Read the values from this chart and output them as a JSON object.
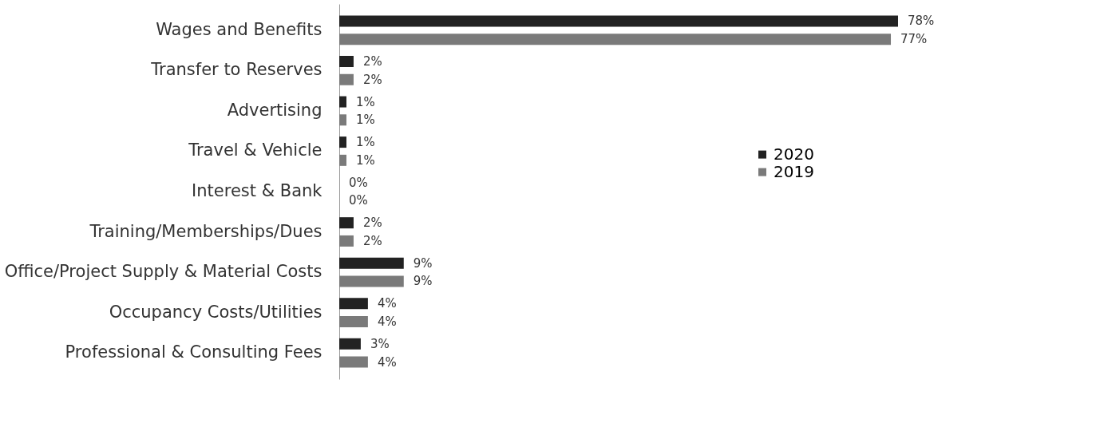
{
  "chart_data": {
    "type": "bar",
    "orientation": "horizontal",
    "categories": [
      "Wages and Benefits",
      "Transfer to Reserves",
      "Advertising",
      "Travel & Vehicle",
      "Interest & Bank",
      "Training/Memberships/Dues",
      "Office/Project Supply & Material Costs",
      "Occupancy Costs/Utilities",
      "Professional & Consulting Fees"
    ],
    "series": [
      {
        "name": "2020",
        "color": "#222222",
        "values": [
          78,
          2,
          1,
          1,
          0,
          2,
          9,
          4,
          3
        ],
        "value_labels": [
          "78%",
          "2%",
          "1%",
          "1%",
          "0%",
          "2%",
          "9%",
          "4%",
          "3%"
        ]
      },
      {
        "name": "2019",
        "color": "#7a7a7a",
        "values": [
          77,
          2,
          1,
          1,
          0,
          2,
          9,
          4,
          4
        ],
        "value_labels": [
          "77%",
          "2%",
          "1%",
          "1%",
          "0%",
          "2%",
          "9%",
          "4%",
          "4%"
        ]
      }
    ],
    "legend": "right",
    "grid": false
  }
}
